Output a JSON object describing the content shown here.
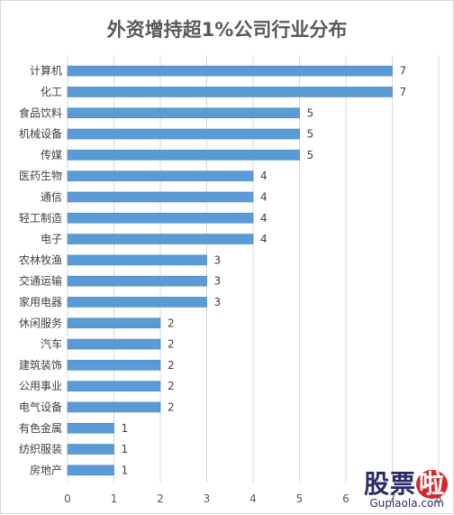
{
  "title": "外资增持超1%公司行业分布",
  "watermark": {
    "line1": "股票啦",
    "line2": "Gupiaola.com"
  },
  "chart_data": {
    "type": "bar",
    "orientation": "horizontal",
    "title": "外资增持超1%公司行业分布",
    "categories": [
      "计算机",
      "化工",
      "食品饮料",
      "机械设备",
      "传媒",
      "医药生物",
      "通信",
      "轻工制造",
      "电子",
      "农林牧渔",
      "交通运输",
      "家用电器",
      "休闲服务",
      "汽车",
      "建筑装饰",
      "公用事业",
      "电气设备",
      "有色金属",
      "纺织服装",
      "房地产"
    ],
    "values": [
      7,
      7,
      5,
      5,
      5,
      4,
      4,
      4,
      4,
      3,
      3,
      3,
      2,
      2,
      2,
      2,
      2,
      1,
      1,
      1
    ],
    "xlim": [
      0,
      8
    ],
    "xticks": [
      0,
      1,
      2,
      3,
      4,
      5,
      6,
      7,
      8
    ],
    "grid": "vertical",
    "bar_color": "#5b9bd5",
    "data_labels": true
  }
}
